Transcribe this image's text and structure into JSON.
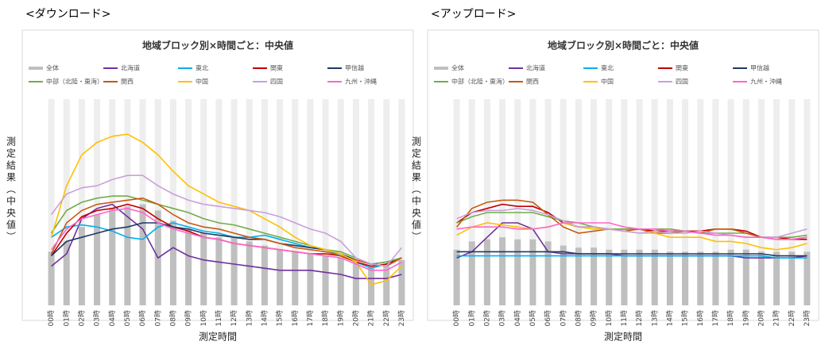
{
  "chart_data": [
    {
      "type": "combo",
      "heading": "<ダウンロード>",
      "title": "地域ブロック別×時間ごと：中央値",
      "y_label": "測定結果（中央値）",
      "x_label": "測定時間",
      "categories": [
        "00時",
        "01時",
        "02時",
        "03時",
        "04時",
        "05時",
        "06時",
        "07時",
        "08時",
        "09時",
        "10時",
        "11時",
        "12時",
        "13時",
        "14時",
        "15時",
        "16時",
        "17時",
        "18時",
        "19時",
        "20時",
        "21時",
        "22時",
        "23時"
      ],
      "ylim": [
        0,
        100
      ],
      "series": [
        {
          "name": "全体",
          "kind": "bar",
          "color": "#bfbfbf",
          "values": [
            26,
            31,
            38,
            44,
            47,
            48,
            49,
            46,
            41,
            37,
            35,
            33,
            33,
            31,
            29,
            27,
            26,
            25,
            24,
            23,
            21,
            19,
            19,
            22
          ]
        },
        {
          "name": "北海道",
          "kind": "line",
          "color": "#7030a0",
          "values": [
            19,
            25,
            42,
            47,
            49,
            43,
            37,
            23,
            28,
            24,
            22,
            21,
            20,
            19,
            18,
            17,
            17,
            17,
            16,
            15,
            13,
            13,
            13,
            15
          ]
        },
        {
          "name": "東北",
          "kind": "line",
          "color": "#00b0f0",
          "values": [
            33,
            38,
            39,
            38,
            36,
            33,
            32,
            38,
            40,
            38,
            36,
            35,
            33,
            33,
            34,
            32,
            30,
            28,
            27,
            24,
            21,
            18,
            20,
            23
          ]
        },
        {
          "name": "関東",
          "kind": "line",
          "color": "#c00000",
          "values": [
            24,
            35,
            43,
            46,
            47,
            49,
            47,
            42,
            38,
            36,
            33,
            32,
            30,
            29,
            28,
            27,
            26,
            25,
            25,
            24,
            21,
            19,
            20,
            23
          ]
        },
        {
          "name": "甲信越",
          "kind": "line",
          "color": "#203864",
          "values": [
            24,
            31,
            33,
            35,
            37,
            38,
            40,
            40,
            38,
            37,
            35,
            34,
            33,
            32,
            32,
            30,
            29,
            28,
            27,
            25,
            22,
            20,
            21,
            23
          ]
        },
        {
          "name": "中部（北陸・東海）",
          "kind": "line",
          "color": "#70ad47",
          "values": [
            35,
            46,
            50,
            52,
            53,
            53,
            51,
            49,
            47,
            45,
            42,
            40,
            39,
            37,
            35,
            33,
            31,
            29,
            27,
            26,
            23,
            20,
            21,
            23
          ]
        },
        {
          "name": "関西",
          "kind": "line",
          "color": "#c55a11",
          "values": [
            25,
            40,
            46,
            49,
            50,
            51,
            52,
            49,
            44,
            40,
            38,
            37,
            35,
            33,
            32,
            30,
            28,
            27,
            26,
            24,
            22,
            20,
            19,
            23
          ]
        },
        {
          "name": "中国",
          "kind": "line",
          "color": "#ffc000",
          "values": [
            33,
            58,
            73,
            79,
            82,
            83,
            79,
            73,
            65,
            58,
            54,
            50,
            48,
            46,
            42,
            38,
            33,
            29,
            27,
            25,
            21,
            10,
            12,
            19
          ]
        },
        {
          "name": "四国",
          "kind": "line",
          "color": "#c9a0dc",
          "values": [
            44,
            54,
            57,
            58,
            61,
            63,
            63,
            58,
            54,
            51,
            49,
            48,
            47,
            46,
            45,
            43,
            40,
            37,
            35,
            31,
            23,
            20,
            19,
            28
          ]
        },
        {
          "name": "九州・沖縄",
          "kind": "line",
          "color": "#ff66cc",
          "values": [
            27,
            37,
            42,
            44,
            46,
            47,
            45,
            40,
            37,
            35,
            33,
            32,
            30,
            29,
            28,
            27,
            26,
            25,
            24,
            23,
            20,
            17,
            17,
            21
          ]
        }
      ]
    },
    {
      "type": "combo",
      "heading": "<アップロード>",
      "title": "地域ブロック別×時間ごと：中央値",
      "y_label": "測定結果（中央値）",
      "x_label": "測定時間",
      "categories": [
        "00時",
        "01時",
        "02時",
        "03時",
        "04時",
        "05時",
        "06時",
        "07時",
        "08時",
        "09時",
        "10時",
        "11時",
        "12時",
        "13時",
        "14時",
        "15時",
        "16時",
        "17時",
        "18時",
        "19時",
        "20時",
        "21時",
        "22時",
        "23時"
      ],
      "ylim": [
        0,
        100
      ],
      "series": [
        {
          "name": "全体",
          "kind": "bar",
          "color": "#bfbfbf",
          "values": [
            27,
            31,
            32,
            33,
            32,
            32,
            31,
            29,
            28,
            28,
            27,
            27,
            27,
            27,
            26,
            26,
            26,
            26,
            27,
            27,
            26,
            26,
            26,
            26
          ]
        },
        {
          "name": "北海道",
          "kind": "line",
          "color": "#7030a0",
          "values": [
            23,
            26,
            33,
            40,
            40,
            37,
            26,
            25,
            25,
            25,
            25,
            24,
            24,
            24,
            24,
            24,
            24,
            24,
            24,
            23,
            23,
            23,
            23,
            24
          ]
        },
        {
          "name": "東北",
          "kind": "line",
          "color": "#00b0f0",
          "values": [
            24,
            24,
            24,
            24,
            24,
            24,
            24,
            24,
            24,
            24,
            24,
            24,
            24,
            24,
            24,
            24,
            24,
            24,
            24,
            24,
            24,
            23,
            23,
            23
          ]
        },
        {
          "name": "関東",
          "kind": "line",
          "color": "#c00000",
          "values": [
            40,
            45,
            47,
            49,
            48,
            48,
            45,
            40,
            38,
            38,
            37,
            37,
            37,
            36,
            36,
            36,
            36,
            37,
            37,
            36,
            33,
            33,
            32,
            32
          ]
        },
        {
          "name": "甲信越",
          "kind": "line",
          "color": "#203864",
          "values": [
            26,
            26,
            26,
            26,
            26,
            26,
            26,
            26,
            25,
            25,
            25,
            25,
            25,
            25,
            25,
            25,
            25,
            25,
            25,
            25,
            25,
            24,
            24,
            24
          ]
        },
        {
          "name": "中部（北陸・東海）",
          "kind": "line",
          "color": "#70ad47",
          "values": [
            40,
            43,
            45,
            45,
            45,
            45,
            43,
            41,
            40,
            38,
            37,
            37,
            37,
            37,
            37,
            36,
            35,
            35,
            35,
            35,
            33,
            33,
            33,
            34
          ]
        },
        {
          "name": "関西",
          "kind": "line",
          "color": "#c55a11",
          "values": [
            38,
            47,
            50,
            51,
            51,
            50,
            44,
            38,
            35,
            36,
            37,
            36,
            37,
            35,
            35,
            36,
            35,
            37,
            37,
            35,
            33,
            32,
            32,
            33
          ]
        },
        {
          "name": "中国",
          "kind": "line",
          "color": "#ffc000",
          "values": [
            34,
            38,
            40,
            39,
            38,
            37,
            38,
            40,
            38,
            37,
            37,
            36,
            35,
            35,
            33,
            33,
            33,
            31,
            31,
            30,
            28,
            27,
            28,
            30
          ]
        },
        {
          "name": "四国",
          "kind": "line",
          "color": "#c9a0dc",
          "values": [
            42,
            45,
            46,
            46,
            47,
            46,
            44,
            41,
            38,
            38,
            37,
            36,
            35,
            36,
            35,
            35,
            36,
            35,
            34,
            33,
            33,
            33,
            35,
            37
          ]
        },
        {
          "name": "九州・沖縄",
          "kind": "line",
          "color": "#ff66cc",
          "values": [
            37,
            38,
            38,
            38,
            37,
            37,
            38,
            40,
            40,
            40,
            40,
            38,
            37,
            37,
            36,
            36,
            35,
            34,
            34,
            33,
            33,
            32,
            32,
            33
          ]
        }
      ]
    }
  ]
}
